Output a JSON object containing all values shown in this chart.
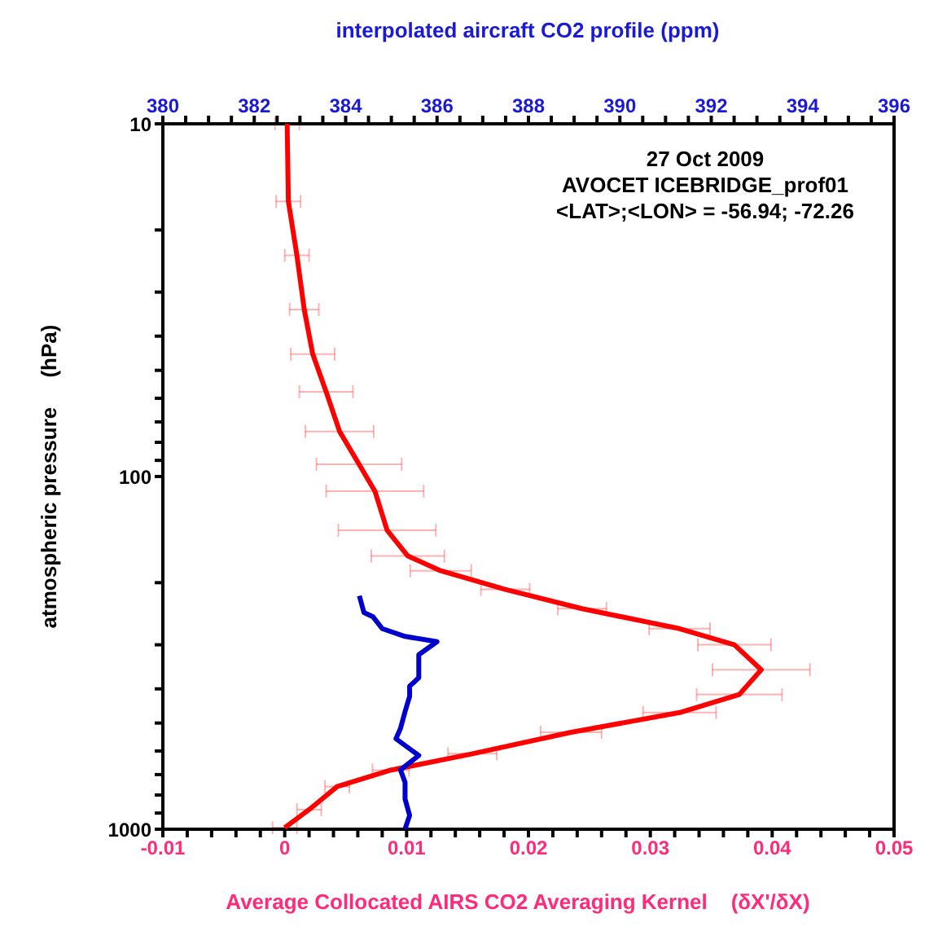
{
  "chart_data": {
    "type": "line",
    "orientation": "horizontal",
    "marker": "none",
    "xlabel": "Average Collocated AIRS CO2 Averaging Kernel    (δX'/δX)",
    "x2label": "interpolated aircraft CO2 profile  (ppm)",
    "ylabel": "atmospheric pressure     (hPa)",
    "annotations": [
      "27 Oct 2009",
      "AVOCET ICEBRIDGE_prof01",
      "<LAT>;<LON> = -56.94; -72.26"
    ],
    "xlim": [
      -0.01,
      0.05
    ],
    "xticks": [
      -0.01,
      {
        "value": -0.008,
        "label": null
      },
      {
        "value": -0.006,
        "label": null
      },
      {
        "value": -0.004,
        "label": null
      },
      {
        "value": -0.002,
        "label": null
      },
      0,
      {
        "value": 0.002,
        "label": null
      },
      {
        "value": 0.004,
        "label": null
      },
      {
        "value": 0.006,
        "label": null
      },
      {
        "value": 0.008,
        "label": null
      },
      0.01,
      {
        "value": 0.012,
        "label": null
      },
      {
        "value": 0.014,
        "label": null
      },
      {
        "value": 0.016,
        "label": null
      },
      {
        "value": 0.018,
        "label": null
      },
      0.02,
      {
        "value": 0.022,
        "label": null
      },
      {
        "value": 0.024,
        "label": null
      },
      {
        "value": 0.026,
        "label": null
      },
      {
        "value": 0.028,
        "label": null
      },
      0.03,
      {
        "value": 0.032,
        "label": null
      },
      {
        "value": 0.034,
        "label": null
      },
      {
        "value": 0.036,
        "label": null
      },
      {
        "value": 0.038,
        "label": null
      },
      0.04,
      {
        "value": 0.042,
        "label": null
      },
      {
        "value": 0.044,
        "label": null
      },
      {
        "value": 0.046,
        "label": null
      },
      {
        "value": 0.048,
        "label": null
      },
      0.05
    ],
    "x2lim": [
      380,
      396
    ],
    "x2ticks": [
      380,
      {
        "value": 380.5,
        "label": null
      },
      {
        "value": 381,
        "label": null
      },
      {
        "value": 381.5,
        "label": null
      },
      382,
      {
        "value": 382.5,
        "label": null
      },
      {
        "value": 383,
        "label": null
      },
      {
        "value": 383.5,
        "label": null
      },
      384,
      {
        "value": 384.5,
        "label": null
      },
      {
        "value": 385,
        "label": null
      },
      {
        "value": 385.5,
        "label": null
      },
      386,
      {
        "value": 386.5,
        "label": null
      },
      {
        "value": 387,
        "label": null
      },
      {
        "value": 387.5,
        "label": null
      },
      388,
      {
        "value": 388.5,
        "label": null
      },
      {
        "value": 389,
        "label": null
      },
      {
        "value": 389.5,
        "label": null
      },
      390,
      {
        "value": 390.5,
        "label": null
      },
      {
        "value": 391,
        "label": null
      },
      {
        "value": 391.5,
        "label": null
      },
      392,
      {
        "value": 392.5,
        "label": null
      },
      {
        "value": 393,
        "label": null
      },
      {
        "value": 393.5,
        "label": null
      },
      394,
      {
        "value": 394.5,
        "label": null
      },
      {
        "value": 395,
        "label": null
      },
      {
        "value": 395.5,
        "label": null
      },
      396
    ],
    "ylim": [
      1000,
      10
    ],
    "log": "y",
    "yticks": [
      10,
      {
        "value": 20,
        "label": null
      },
      {
        "value": 30,
        "label": null
      },
      {
        "value": 40,
        "label": null
      },
      {
        "value": 50,
        "label": null
      },
      {
        "value": 60,
        "label": null
      },
      {
        "value": 70,
        "label": null
      },
      {
        "value": 80,
        "label": null
      },
      {
        "value": 90,
        "label": null
      },
      100,
      {
        "value": 200,
        "label": null
      },
      {
        "value": 300,
        "label": null
      },
      {
        "value": 400,
        "label": null
      },
      {
        "value": 500,
        "label": null
      },
      {
        "value": 600,
        "label": null
      },
      {
        "value": 700,
        "label": null
      },
      {
        "value": 800,
        "label": null
      },
      {
        "value": 900,
        "label": null
      },
      1000
    ],
    "series": [
      {
        "color": "#ff0000",
        "x": [
          10,
          16.6,
          23.6,
          33.6,
          45,
          57.5,
          74.5,
          92.3,
          110,
          142,
          168,
          185,
          209,
          237,
          270,
          300,
          353,
          415,
          467,
          531,
          611,
          680,
          757,
          880,
          990
        ],
        "values": [
          0.0002,
          0.0003,
          0.001,
          0.0016,
          0.0023,
          0.0034,
          0.0045,
          0.0061,
          0.0074,
          0.0084,
          0.0101,
          0.0128,
          0.0181,
          0.0244,
          0.0324,
          0.0369,
          0.0391,
          0.0373,
          0.0324,
          0.0235,
          0.0154,
          0.0087,
          0.0043,
          0.002,
          0.0
        ],
        "errors": [
          0.001,
          0.001,
          0.001,
          0.0012,
          0.0018,
          0.0022,
          0.0028,
          0.0035,
          0.004,
          0.004,
          0.003,
          0.0025,
          0.002,
          0.002,
          0.0025,
          0.003,
          0.004,
          0.0035,
          0.003,
          0.0025,
          0.002,
          0.0015,
          0.001,
          0.001,
          0.001
        ]
      },
      {
        "color": "#0000cc",
        "axis": "x2",
        "x": [
          218,
          243,
          250,
          270,
          284,
          294,
          320,
          372,
          393,
          420,
          464,
          518,
          554,
          618,
          679,
          736,
          821,
          914,
          998
        ],
        "values": [
          384.3,
          384.4,
          384.6,
          384.8,
          385.3,
          386.0,
          385.6,
          385.6,
          385.4,
          385.4,
          385.3,
          385.2,
          385.1,
          385.6,
          385.2,
          385.3,
          385.3,
          385.4,
          385.3
        ]
      }
    ]
  }
}
